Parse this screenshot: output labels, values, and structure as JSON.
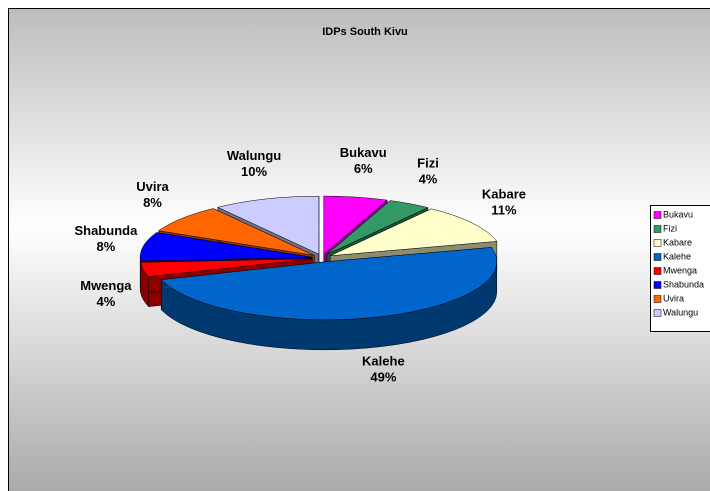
{
  "chart_data": {
    "type": "pie3d",
    "title": "IDPs South Kivu",
    "categories": [
      "Bukavu",
      "Fizi",
      "Kabare",
      "Kalehe",
      "Mwenga",
      "Shabunda",
      "Uvira",
      "Walungu"
    ],
    "values": [
      6,
      4,
      11,
      49,
      4,
      8,
      8,
      10
    ],
    "value_labels": [
      "6%",
      "4%",
      "11%",
      "49%",
      "4%",
      "8%",
      "8%",
      "10%"
    ],
    "colors": [
      "#ff00ff",
      "#339966",
      "#ffffcc",
      "#0066cc",
      "#ff0000",
      "#0000ff",
      "#ff6600",
      "#ccccff"
    ],
    "legend": "right"
  }
}
